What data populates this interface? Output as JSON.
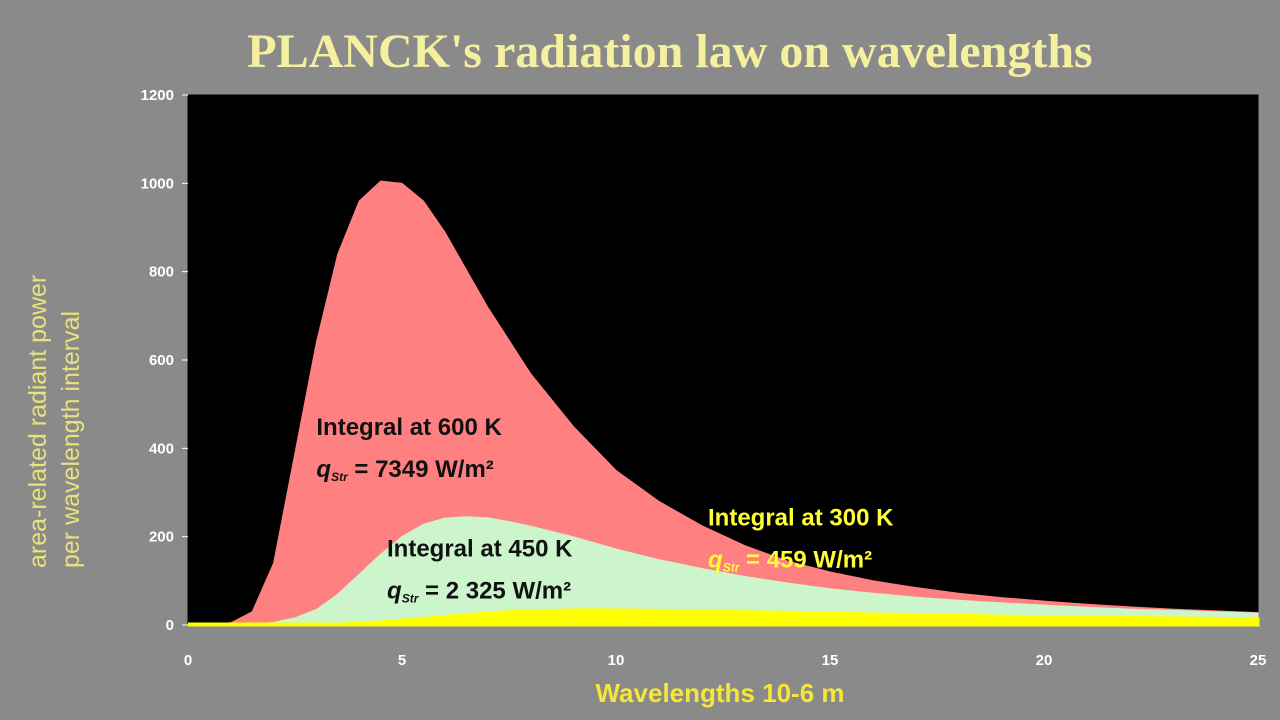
{
  "chart_data": {
    "type": "area",
    "title": "PLANCK's radiation law on wavelengths",
    "xlabel": "Wavelengths 10-6 m",
    "ylabel_lines": [
      "area-related radiant power",
      "per wavelength interval"
    ],
    "xlim": [
      0,
      25
    ],
    "ylim": [
      0,
      1200
    ],
    "xticks": [
      0,
      5,
      10,
      15,
      20,
      25
    ],
    "yticks": [
      0,
      200,
      400,
      600,
      800,
      1000,
      1200
    ],
    "x": [
      0,
      1,
      1.5,
      2,
      2.5,
      3,
      3.5,
      4,
      4.5,
      5,
      5.5,
      6,
      6.5,
      7,
      7.5,
      8,
      9,
      10,
      11,
      12,
      13,
      14,
      15,
      16,
      17,
      18,
      19,
      20,
      21,
      22,
      23,
      24,
      25
    ],
    "series": [
      {
        "name": "600 K",
        "color": "#ff8080",
        "values": [
          0,
          5,
          30,
          140,
          390,
          640,
          840,
          960,
          1005,
          1000,
          960,
          890,
          805,
          720,
          645,
          570,
          450,
          350,
          280,
          225,
          180,
          145,
          120,
          100,
          85,
          72,
          62,
          54,
          47,
          41,
          36,
          32,
          28
        ]
      },
      {
        "name": "450 K",
        "color": "#ccf5cc",
        "values": [
          0,
          0,
          2,
          6,
          16,
          35,
          70,
          115,
          160,
          200,
          228,
          242,
          245,
          243,
          234,
          224,
          200,
          172,
          148,
          128,
          110,
          95,
          82,
          72,
          63,
          56,
          50,
          45,
          40,
          36,
          33,
          30,
          27
        ]
      },
      {
        "name": "300 K",
        "color": "#ffff00",
        "values": [
          0,
          0,
          0,
          0,
          0,
          1,
          2,
          4,
          7,
          11,
          15,
          19,
          23,
          27,
          30,
          32,
          34,
          34,
          33,
          32,
          30,
          29,
          27,
          25,
          23,
          22,
          20,
          19,
          18,
          17,
          16,
          15,
          14
        ]
      }
    ],
    "annotations": [
      {
        "series": "600 K",
        "line1": "Integral",
        "at": "at",
        "temp": "600 K",
        "sym": "q",
        "sub": "Str",
        "value": "= 7349 W/m²",
        "color": "#111111",
        "x": 3,
        "y": 430
      },
      {
        "series": "450 K",
        "line1": "Integral",
        "at": "at",
        "temp": "450 K",
        "sym": "q",
        "sub": "Str",
        "value": "= 2 325 W/m²",
        "color": "#111111",
        "x": 4.65,
        "y": 155
      },
      {
        "series": "300 K",
        "line1": "Integral",
        "at": "at",
        "temp": "300 K",
        "sym": "q",
        "sub": "Str",
        "value": "= 459 W/m²",
        "color": "#ffff33",
        "x": 12.15,
        "y": 225
      }
    ],
    "colors": {
      "plot_bg": "#000000",
      "frame": "#000000",
      "tick_text": "#ffffff"
    }
  }
}
